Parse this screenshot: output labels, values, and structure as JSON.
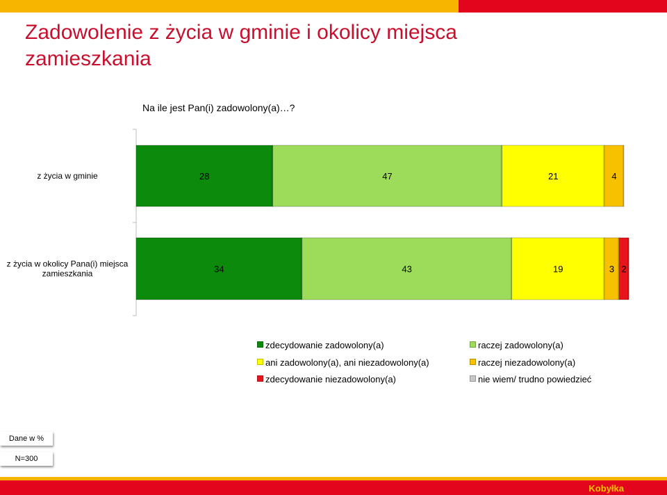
{
  "header": {
    "title": "Zadowolenie z życia w gminie i okolicy miejsca zamieszkania",
    "question": "Na ile jest Pan(i) zadowolony(a)…?"
  },
  "colors": {
    "brand_red": "#e3051b",
    "brand_yellow": "#f7b500"
  },
  "chart_data": {
    "type": "bar",
    "orientation": "horizontal",
    "stacked": true,
    "categories": [
      "z życia w gminie",
      "z życia w okolicy Pana(i) miejsca zamieszkania"
    ],
    "series": [
      {
        "name": "zdecydowanie zadowolony(a)",
        "values": [
          28,
          34
        ],
        "color": "#0b8a0b"
      },
      {
        "name": "raczej zadowolony(a)",
        "values": [
          47,
          43
        ],
        "color": "#9ddc5a"
      },
      {
        "name": "ani zadowolony(a), ani niezadowolony(a)",
        "values": [
          21,
          19
        ],
        "color": "#ffff00"
      },
      {
        "name": "raczej niezadowolony(a)",
        "values": [
          4,
          3
        ],
        "color": "#f7c100"
      },
      {
        "name": "zdecydowanie niezadowolony(a)",
        "values": [
          0,
          2
        ],
        "color": "#e8141c"
      },
      {
        "name": "nie wiem/ trudno powiedzieć",
        "values": [
          0,
          0
        ],
        "color": "#c8c8c8"
      }
    ],
    "ylim": [
      0,
      100
    ],
    "grid": false,
    "legend_position": "bottom"
  },
  "notes": {
    "unit": "Dane w %",
    "sample": "N=300"
  },
  "footer": {
    "brand": "Kobyłka"
  }
}
